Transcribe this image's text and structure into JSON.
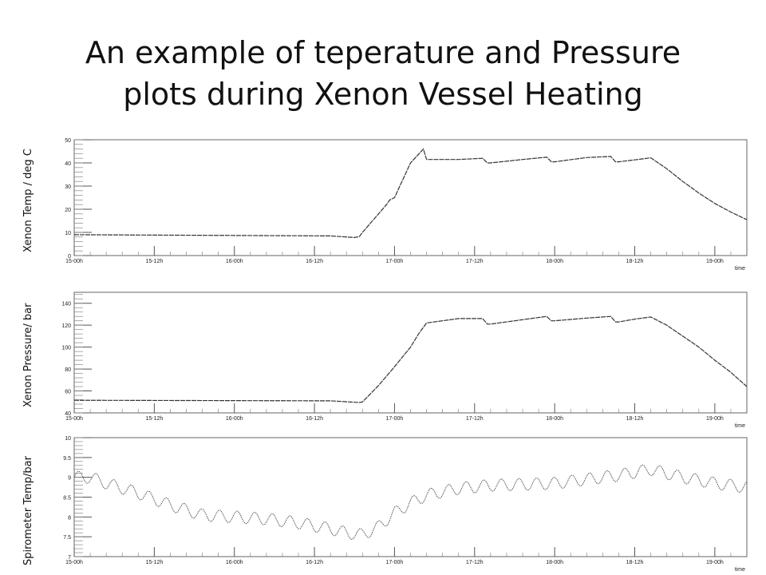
{
  "slide": {
    "title_line1": "An example of teperature and Pressure",
    "title_line2": "plots during Xenon Vessel Heating"
  },
  "x_ticks": [
    "15-00h",
    "15-12h",
    "16-00h",
    "16-12h",
    "17-00h",
    "17-12h",
    "18-00h",
    "18-12h",
    "19-00h"
  ],
  "x_unit": "time",
  "chart_data": [
    {
      "type": "line",
      "ylabel": "Xenon Temp / deg C",
      "xlabel": "time",
      "ylim": [
        0,
        50
      ],
      "y_ticks": [
        0,
        10,
        20,
        30,
        40,
        50
      ],
      "grid": false,
      "series": [
        {
          "x": [
            0,
            16,
            17.5,
            17.8,
            18,
            18.5,
            19,
            19.5,
            19.7,
            20,
            21,
            21.8,
            22,
            24,
            25.5,
            25.8,
            26,
            28,
            29.5,
            29.8,
            30,
            32,
            33.5,
            33.8,
            34,
            35,
            36,
            37,
            38,
            39,
            40,
            41,
            42
          ],
          "values": [
            9,
            8.5,
            7.8,
            8.2,
            10,
            14,
            18,
            22,
            24,
            25,
            40,
            46,
            41.5,
            41.5,
            42,
            40,
            40,
            41.5,
            42.5,
            40.5,
            40.5,
            42.3,
            42.8,
            40.5,
            40.5,
            41.3,
            42.2,
            37.5,
            32,
            27,
            22.5,
            18.8,
            15.5
          ]
        }
      ]
    },
    {
      "type": "line",
      "ylabel": "Xenon Pressure/ bar",
      "xlabel": "time",
      "ylim": [
        40,
        150
      ],
      "y_ticks": [
        40,
        60,
        80,
        100,
        120,
        140
      ],
      "grid": false,
      "series": [
        {
          "x": [
            0,
            16,
            17.8,
            18,
            19,
            20,
            21,
            21.5,
            22,
            24,
            25.5,
            25.8,
            26,
            28,
            29.5,
            29.8,
            30,
            32,
            33.5,
            33.8,
            34,
            35,
            36,
            37,
            38,
            39,
            40,
            41,
            42
          ],
          "values": [
            51.5,
            51,
            49.5,
            50,
            65,
            82,
            100,
            112,
            122,
            126,
            126,
            121,
            121,
            125,
            128,
            124,
            124,
            126.5,
            128,
            123,
            123,
            125.5,
            127.5,
            120,
            110,
            100,
            88,
            77,
            64
          ]
        }
      ]
    },
    {
      "type": "line",
      "ylabel": "Spirometer Temp/bar",
      "xlabel": "time",
      "ylim": [
        7,
        10
      ],
      "y_ticks": [
        7,
        7.5,
        8,
        8.5,
        9,
        9.5,
        10
      ],
      "y_tick_labels": [
        "7",
        "7.5",
        "8",
        "8.5",
        "9",
        "9.5",
        "10"
      ],
      "grid": false,
      "series": [
        {
          "x": [
            0,
            1,
            2,
            4,
            6,
            8,
            10,
            12,
            14,
            16,
            17,
            18,
            19,
            20,
            21,
            22,
            24,
            26,
            28,
            30,
            32,
            34,
            36,
            38,
            40,
            42
          ],
          "values": [
            9,
            9,
            8.85,
            8.6,
            8.3,
            8.05,
            8,
            7.95,
            7.85,
            7.7,
            7.6,
            7.55,
            7.75,
            8.1,
            8.35,
            8.55,
            8.72,
            8.8,
            8.82,
            8.85,
            8.95,
            9.05,
            9.2,
            9,
            8.85,
            8.75
          ],
          "oscillation_amplitude": 0.15
        }
      ]
    }
  ]
}
